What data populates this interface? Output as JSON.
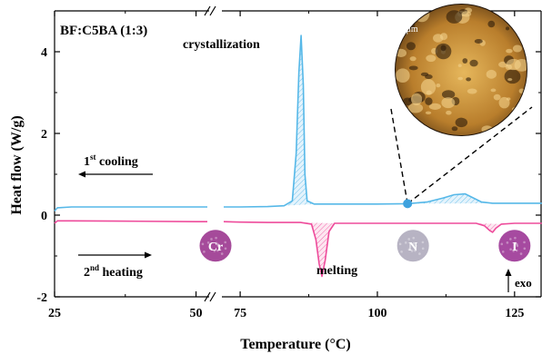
{
  "chart_data": {
    "type": "line",
    "title": "BF:C5BA (1:3)",
    "xlabel": "Temperature (°C)",
    "ylabel": "Heat flow (W/g)",
    "ylim": [
      -2,
      5
    ],
    "x_axis_break": {
      "from": 52,
      "to": 72
    },
    "x_ticks": [
      25,
      50,
      75,
      100,
      125
    ],
    "y_ticks": [
      -2,
      0,
      2,
      4
    ],
    "grid": false,
    "colors": {
      "cooling": "#56b8e8",
      "heating": "#ee4b9b",
      "marker": "#3ea2de"
    },
    "series": [
      {
        "name": "1st cooling",
        "values": [
          [
            25,
            0.1
          ],
          [
            25.5,
            0.18
          ],
          [
            28,
            0.2
          ],
          [
            40,
            0.2
          ],
          [
            50,
            0.2
          ],
          [
            52,
            0.2
          ],
          [
            72,
            0.2
          ],
          [
            75,
            0.2
          ],
          [
            80,
            0.21
          ],
          [
            83,
            0.23
          ],
          [
            84.5,
            0.35
          ],
          [
            85.2,
            1.5
          ],
          [
            85.7,
            3.5
          ],
          [
            86.1,
            4.4
          ],
          [
            86.5,
            3.2
          ],
          [
            86.8,
            1.0
          ],
          [
            87.2,
            0.35
          ],
          [
            88.5,
            0.27
          ],
          [
            95,
            0.27
          ],
          [
            100,
            0.27
          ],
          [
            105.5,
            0.28
          ],
          [
            109,
            0.32
          ],
          [
            112,
            0.42
          ],
          [
            114,
            0.5
          ],
          [
            116,
            0.52
          ],
          [
            117.5,
            0.42
          ],
          [
            119,
            0.32
          ],
          [
            121,
            0.29
          ],
          [
            125,
            0.29
          ],
          [
            130,
            0.29
          ]
        ]
      },
      {
        "name": "2nd heating",
        "values": [
          [
            25,
            -0.2
          ],
          [
            25.5,
            -0.14
          ],
          [
            28,
            -0.14
          ],
          [
            40,
            -0.15
          ],
          [
            50,
            -0.16
          ],
          [
            52,
            -0.16
          ],
          [
            72,
            -0.16
          ],
          [
            75,
            -0.17
          ],
          [
            80,
            -0.18
          ],
          [
            86,
            -0.18
          ],
          [
            88,
            -0.22
          ],
          [
            88.8,
            -0.6
          ],
          [
            89.4,
            -1.2
          ],
          [
            89.9,
            -1.5
          ],
          [
            90.5,
            -1.1
          ],
          [
            91.2,
            -0.4
          ],
          [
            92.2,
            -0.2
          ],
          [
            95,
            -0.2
          ],
          [
            100,
            -0.2
          ],
          [
            110,
            -0.2
          ],
          [
            118,
            -0.2
          ],
          [
            119.5,
            -0.26
          ],
          [
            120.5,
            -0.38
          ],
          [
            121,
            -0.42
          ],
          [
            121.6,
            -0.32
          ],
          [
            122.6,
            -0.22
          ],
          [
            125,
            -0.2
          ],
          [
            130,
            -0.2
          ]
        ]
      }
    ],
    "marker_point": [
      105.5,
      0.28
    ],
    "annotations": {
      "crystallization": "crystallization",
      "melting": "melting",
      "cooling_prefix": "1",
      "cooling_sup": "st",
      "cooling_suffix": " cooling",
      "heating_prefix": "2",
      "heating_sup": "nd",
      "heating_suffix": " heating",
      "exo": "exo",
      "scale_bar": "500 μm"
    },
    "phase_labels": [
      {
        "label": "Cr",
        "x": 62,
        "y": -0.75,
        "color": "#a54a9a"
      },
      {
        "label": "N",
        "x": 106.5,
        "y": -0.75,
        "color": "#b7b3c3"
      },
      {
        "label": "I",
        "x": 125,
        "y": -0.75,
        "color": "#a64aa0"
      }
    ]
  }
}
